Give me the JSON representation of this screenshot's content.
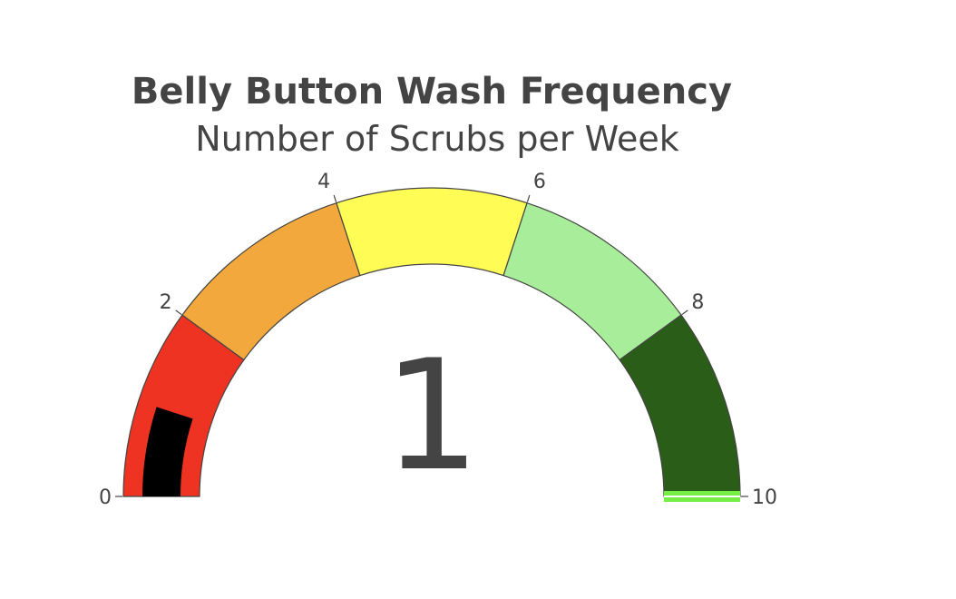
{
  "chart_data": {
    "type": "gauge",
    "title": "Belly Button Wash Frequency",
    "subtitle": "Number of Scrubs per Week",
    "value": 1,
    "value_label": "1",
    "range": [
      0,
      10
    ],
    "ticks": [
      {
        "value": 0,
        "label": "0"
      },
      {
        "value": 2,
        "label": "2"
      },
      {
        "value": 4,
        "label": "4"
      },
      {
        "value": 6,
        "label": "6"
      },
      {
        "value": 8,
        "label": "8"
      },
      {
        "value": 10,
        "label": "10"
      }
    ],
    "steps": [
      {
        "range": [
          0,
          2
        ],
        "color": "#ee3322"
      },
      {
        "range": [
          2,
          4
        ],
        "color": "#f2a83c"
      },
      {
        "range": [
          4,
          6
        ],
        "color": "#fffc55"
      },
      {
        "range": [
          6,
          8
        ],
        "color": "#a8ed99"
      },
      {
        "range": [
          8,
          10
        ],
        "color": "#2a5e18"
      }
    ],
    "bar_color": "#000000",
    "threshold": {
      "value": 10,
      "color": "#77ee44"
    },
    "outline_color": "#444444"
  }
}
